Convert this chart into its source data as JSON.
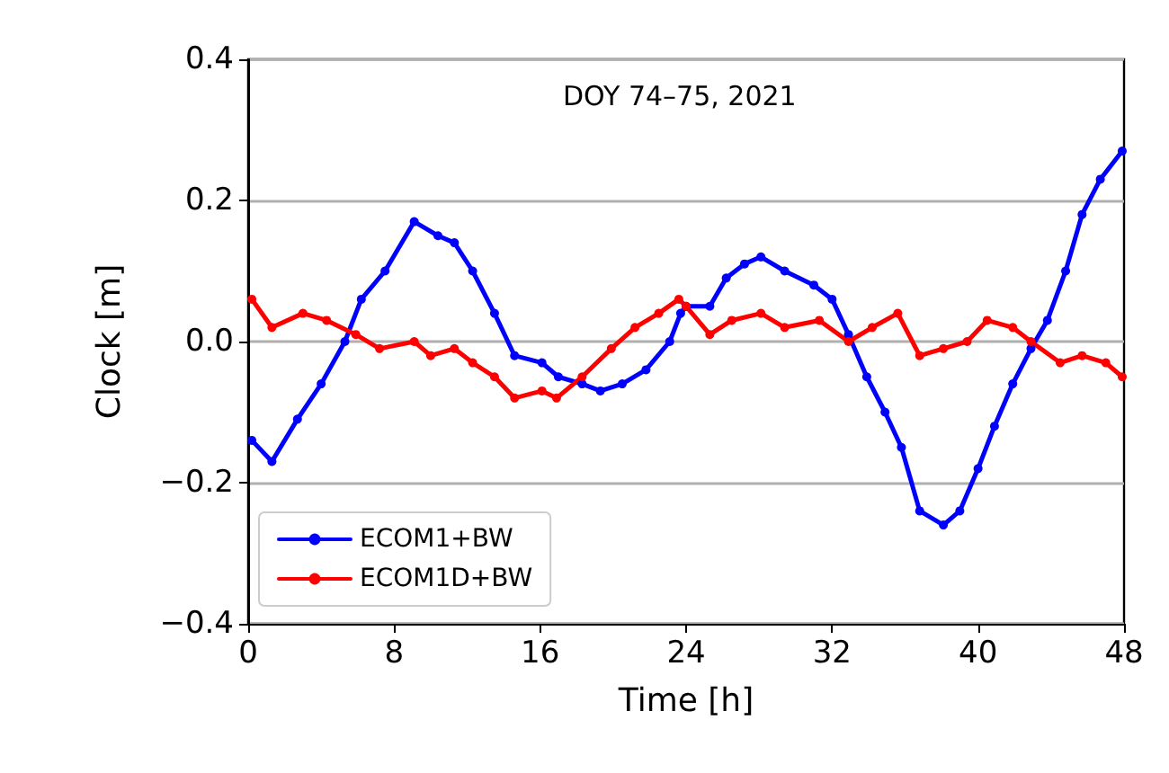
{
  "chart_data": {
    "type": "line",
    "xlabel": "Time [h]",
    "ylabel": "Clock [m]",
    "annotations": [
      "DOY 74–75, 2021"
    ],
    "xlim": [
      0,
      48
    ],
    "xticks": [
      0,
      8,
      16,
      24,
      32,
      40,
      48
    ],
    "ylim": [
      -0.4,
      0.4
    ],
    "yticks": [
      {
        "value": -0.4,
        "label": "−0.4"
      },
      {
        "value": -0.2,
        "label": "−0.2"
      },
      {
        "value": 0,
        "label": "0.0"
      },
      {
        "value": 0.2,
        "label": "0.2"
      },
      {
        "value": 0.4,
        "label": "0.4"
      }
    ],
    "grid": "y",
    "legend": "bottom left",
    "marker": "circle",
    "line_style": "solid",
    "series": [
      {
        "name": "ECOM1+BW",
        "color": "#0000ff",
        "x": [
          0.2,
          1.3,
          2.7,
          4.0,
          5.3,
          6.2,
          7.5,
          9.1,
          10.4,
          11.3,
          12.3,
          13.5,
          14.6,
          16.1,
          17.0,
          18.3,
          19.3,
          20.5,
          21.8,
          23.1,
          23.7,
          24.0,
          25.3,
          26.2,
          27.2,
          28.1,
          29.4,
          31.0,
          32.0,
          32.9,
          33.9,
          34.9,
          35.8,
          36.8,
          38.1,
          39.0,
          40.0,
          40.9,
          41.9,
          42.9,
          43.8,
          44.8,
          45.7,
          46.7,
          47.9
        ],
        "values": [
          -0.14,
          -0.17,
          -0.11,
          -0.06,
          0.0,
          0.06,
          0.1,
          0.17,
          0.15,
          0.14,
          0.1,
          0.04,
          -0.02,
          -0.03,
          -0.05,
          -0.06,
          -0.07,
          -0.06,
          -0.04,
          0.0,
          0.04,
          0.05,
          0.05,
          0.09,
          0.11,
          0.12,
          0.1,
          0.08,
          0.06,
          0.01,
          -0.05,
          -0.1,
          -0.15,
          -0.24,
          -0.26,
          -0.24,
          -0.18,
          -0.12,
          -0.06,
          -0.01,
          0.03,
          0.1,
          0.18,
          0.23,
          0.27
        ]
      },
      {
        "name": "ECOM1D+BW",
        "color": "#ff0000",
        "x": [
          0.2,
          1.3,
          3.0,
          4.3,
          5.9,
          7.2,
          9.1,
          10.0,
          11.3,
          12.3,
          13.5,
          14.6,
          16.1,
          16.9,
          18.3,
          19.9,
          21.2,
          22.5,
          23.6,
          24.0,
          25.3,
          26.5,
          28.1,
          29.4,
          31.3,
          32.9,
          34.2,
          35.6,
          36.8,
          38.1,
          39.4,
          40.5,
          41.9,
          42.9,
          44.5,
          45.7,
          47.0,
          47.9
        ],
        "values": [
          0.06,
          0.02,
          0.04,
          0.03,
          0.01,
          -0.01,
          0.0,
          -0.02,
          -0.01,
          -0.03,
          -0.05,
          -0.08,
          -0.07,
          -0.08,
          -0.05,
          -0.01,
          0.02,
          0.04,
          0.06,
          0.05,
          0.01,
          0.03,
          0.04,
          0.02,
          0.03,
          0.0,
          0.02,
          0.04,
          -0.02,
          -0.01,
          0.0,
          0.03,
          0.02,
          0.0,
          -0.03,
          -0.02,
          -0.03,
          -0.05
        ]
      }
    ]
  }
}
